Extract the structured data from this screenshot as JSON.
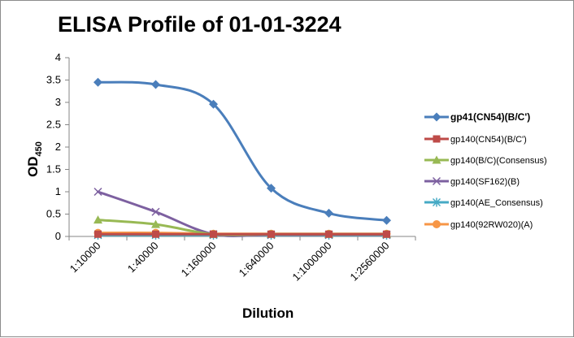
{
  "chart_data": {
    "type": "line",
    "title": "ELISA Profile of 01-01-3224",
    "xlabel": "Dilution",
    "ylabel": "OD",
    "ylabel_subscript": "450",
    "ylim": [
      0,
      4
    ],
    "yticks": [
      "0",
      "0.5",
      "1",
      "1.5",
      "2",
      "2.5",
      "3",
      "3.5",
      "4"
    ],
    "yticks_values": [
      0,
      0.5,
      1,
      1.5,
      2,
      2.5,
      3,
      3.5,
      4
    ],
    "categories": [
      "1:10000",
      "1:40000",
      "1:160000",
      "1:640000",
      "1:1000000",
      "1:2560000"
    ],
    "grid": false,
    "legend_position": "right",
    "series": [
      {
        "name": "gp41(CN54)(B/C')",
        "color": "#4a7ebb",
        "marker": "diamond",
        "values": [
          3.45,
          3.4,
          2.96,
          1.08,
          0.52,
          0.36
        ]
      },
      {
        "name": "gp140(CN54)(B/C')",
        "color": "#be4b48",
        "marker": "square",
        "values": [
          0.05,
          0.05,
          0.05,
          0.05,
          0.05,
          0.05
        ]
      },
      {
        "name": "gp140(B/C)(Consensus)",
        "color": "#98b954",
        "marker": "triangle",
        "values": [
          0.37,
          0.27,
          0.05,
          0.05,
          0.05,
          0.05
        ]
      },
      {
        "name": "gp140(SF162)(B)",
        "color": "#7d60a0",
        "marker": "x",
        "values": [
          1.0,
          0.55,
          0.05,
          0.04,
          0.04,
          0.04
        ]
      },
      {
        "name": "gp140(AE_Consensus)",
        "color": "#46aac5",
        "marker": "star",
        "values": [
          0.03,
          0.03,
          0.03,
          0.03,
          0.03,
          0.03
        ]
      },
      {
        "name": "gp140(92RW020)(A)",
        "color": "#f79646",
        "marker": "circle",
        "values": [
          0.08,
          0.08,
          0.06,
          0.06,
          0.06,
          0.06
        ]
      }
    ]
  }
}
